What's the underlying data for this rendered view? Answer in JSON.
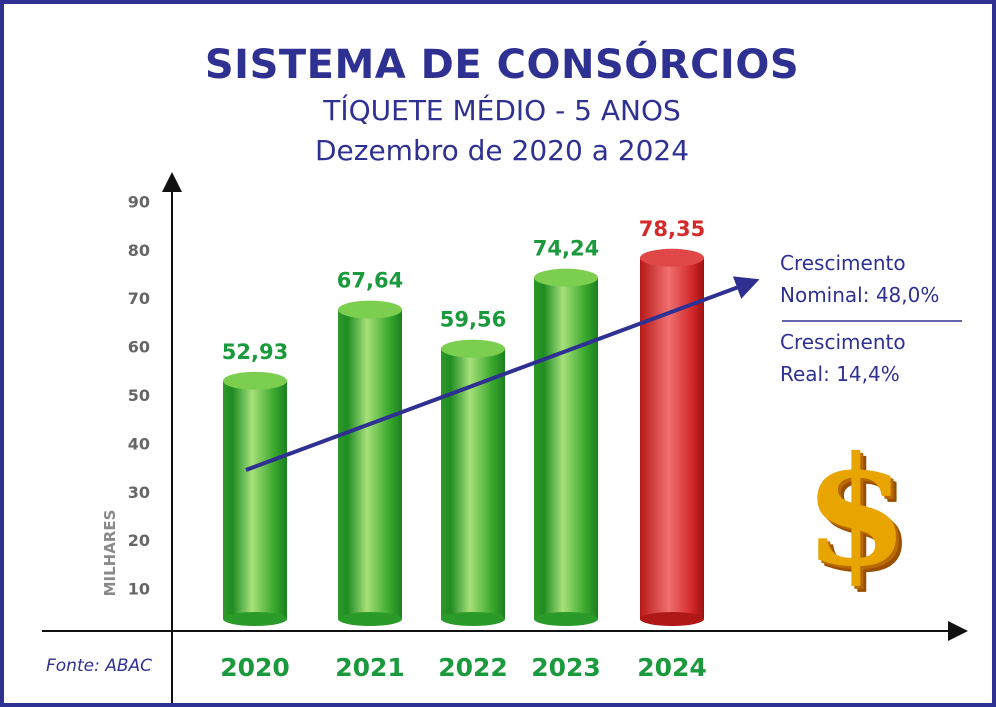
{
  "title": "SISTEMA DE CONSÓRCIOS",
  "subtitle": "TÍQUETE MÉDIO - 5 ANOS",
  "period": "Dezembro de 2020 a 2024",
  "source": "Fonte: ABAC",
  "notes": {
    "nominal_line1": "Crescimento",
    "nominal_line2": "Nominal: 48,0%",
    "real_line1": "Crescimento",
    "real_line2": "Real: 14,4%"
  },
  "icons": {
    "dollar": "$"
  },
  "colors": {
    "frame": "#2e3192",
    "green": "#1a9a3c",
    "red": "#d42a2a",
    "trend": "#2e3192"
  },
  "chart_data": {
    "type": "bar",
    "categories": [
      "2020",
      "2021",
      "2022",
      "2023",
      "2024"
    ],
    "values": [
      52.93,
      67.64,
      59.56,
      74.24,
      78.35
    ],
    "value_labels": [
      "52,93",
      "67,64",
      "59,56",
      "74,24",
      "78,35"
    ],
    "highlight": "2024",
    "ylabel": "MILHARES",
    "ylim": [
      0,
      90
    ],
    "yticks": [
      "10",
      "20",
      "30",
      "40",
      "50",
      "60",
      "70",
      "80",
      "90"
    ],
    "grid": false,
    "trend_arrow": true
  }
}
